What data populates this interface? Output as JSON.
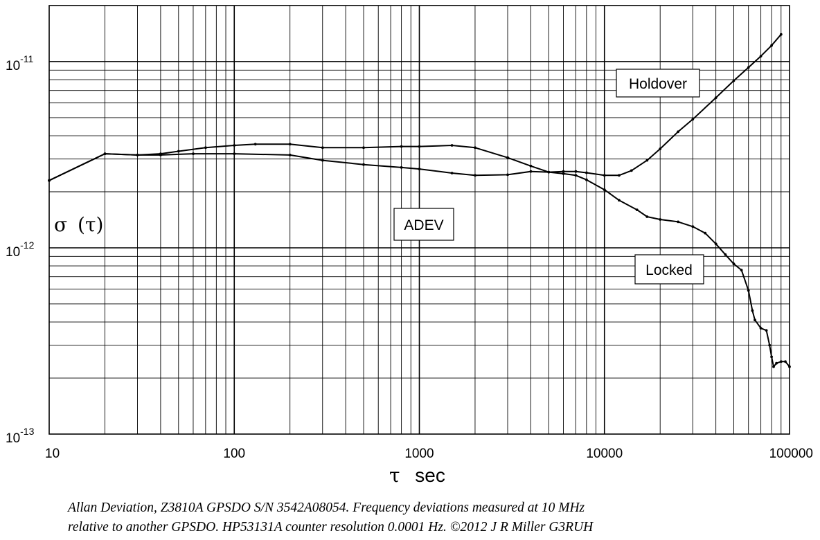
{
  "chart_data": {
    "type": "line",
    "xscale": "log",
    "yscale": "log",
    "xlim": [
      10,
      100000
    ],
    "ylim": [
      1e-13,
      2e-11
    ],
    "grid": true,
    "xticks": [
      "10",
      "100",
      "1000",
      "10000",
      "100000"
    ],
    "yticks": [
      {
        "base": "10",
        "exp": "-11"
      },
      {
        "base": "10",
        "exp": "-12"
      },
      {
        "base": "10",
        "exp": "-13"
      }
    ],
    "ylabel_sym": "σ",
    "ylabel_arg": "(τ)",
    "xlabel_sym": "τ",
    "xlabel_unit": "sec",
    "annotations": [
      "Holdover",
      "ADEV",
      "Locked"
    ],
    "series": [
      {
        "x": [
          10,
          20,
          30,
          40,
          50,
          70,
          100,
          130,
          200,
          300,
          500,
          800,
          1000,
          1500,
          2000,
          3000,
          4000,
          5000,
          6000,
          7000,
          8000,
          10000,
          12000,
          14000,
          17000,
          20000,
          25000,
          30000,
          40000,
          50000,
          60000,
          70000,
          80000,
          90000
        ],
        "y": [
          2.3e-12,
          3.2e-12,
          3.15e-12,
          3.2e-12,
          3.3e-12,
          3.45e-12,
          3.55e-12,
          3.6e-12,
          3.6e-12,
          3.45e-12,
          3.45e-12,
          3.5e-12,
          3.5e-12,
          3.55e-12,
          3.45e-12,
          3.05e-12,
          2.75e-12,
          2.55e-12,
          2.57e-12,
          2.57e-12,
          2.53e-12,
          2.45e-12,
          2.45e-12,
          2.6e-12,
          2.95e-12,
          3.4e-12,
          4.2e-12,
          4.9e-12,
          6.4e-12,
          7.9e-12,
          9.3e-12,
          1.07e-11,
          1.22e-11,
          1.4e-11
        ]
      },
      {
        "x": [
          10,
          20,
          30,
          40,
          60,
          100,
          200,
          300,
          500,
          800,
          1000,
          1500,
          2000,
          3000,
          4000,
          5000,
          6000,
          7000,
          8000,
          10000,
          12000,
          15000,
          17000,
          20000,
          25000,
          30000,
          35000,
          40000,
          45000,
          50000,
          55000,
          60000,
          63000,
          65000,
          70000,
          75000,
          78000,
          80000,
          82000,
          85000,
          90000,
          95000,
          100000
        ],
        "y": [
          2.3e-12,
          3.2e-12,
          3.15e-12,
          3.15e-12,
          3.2e-12,
          3.2e-12,
          3.15e-12,
          2.95e-12,
          2.8e-12,
          2.7e-12,
          2.65e-12,
          2.52e-12,
          2.45e-12,
          2.47e-12,
          2.57e-12,
          2.55e-12,
          2.5e-12,
          2.45e-12,
          2.32e-12,
          2.05e-12,
          1.8e-12,
          1.6e-12,
          1.47e-12,
          1.42e-12,
          1.38e-12,
          1.3e-12,
          1.2e-12,
          1.05e-12,
          9.2e-13,
          8.2e-13,
          7.6e-13,
          5.9e-13,
          4.6e-13,
          4.1e-13,
          3.7e-13,
          3.6e-13,
          3e-13,
          2.6e-13,
          2.3e-13,
          2.4e-13,
          2.45e-13,
          2.45e-13,
          2.3e-13
        ]
      }
    ]
  },
  "caption": {
    "line1": "Allan Deviation, Z3810A GPSDO S/N 3542A08054.  Frequency deviations measured at 10 MHz",
    "line2": "relative to another GPSDO. HP53131A counter resolution 0.0001 Hz.   ©2012 J R Miller G3RUH"
  }
}
